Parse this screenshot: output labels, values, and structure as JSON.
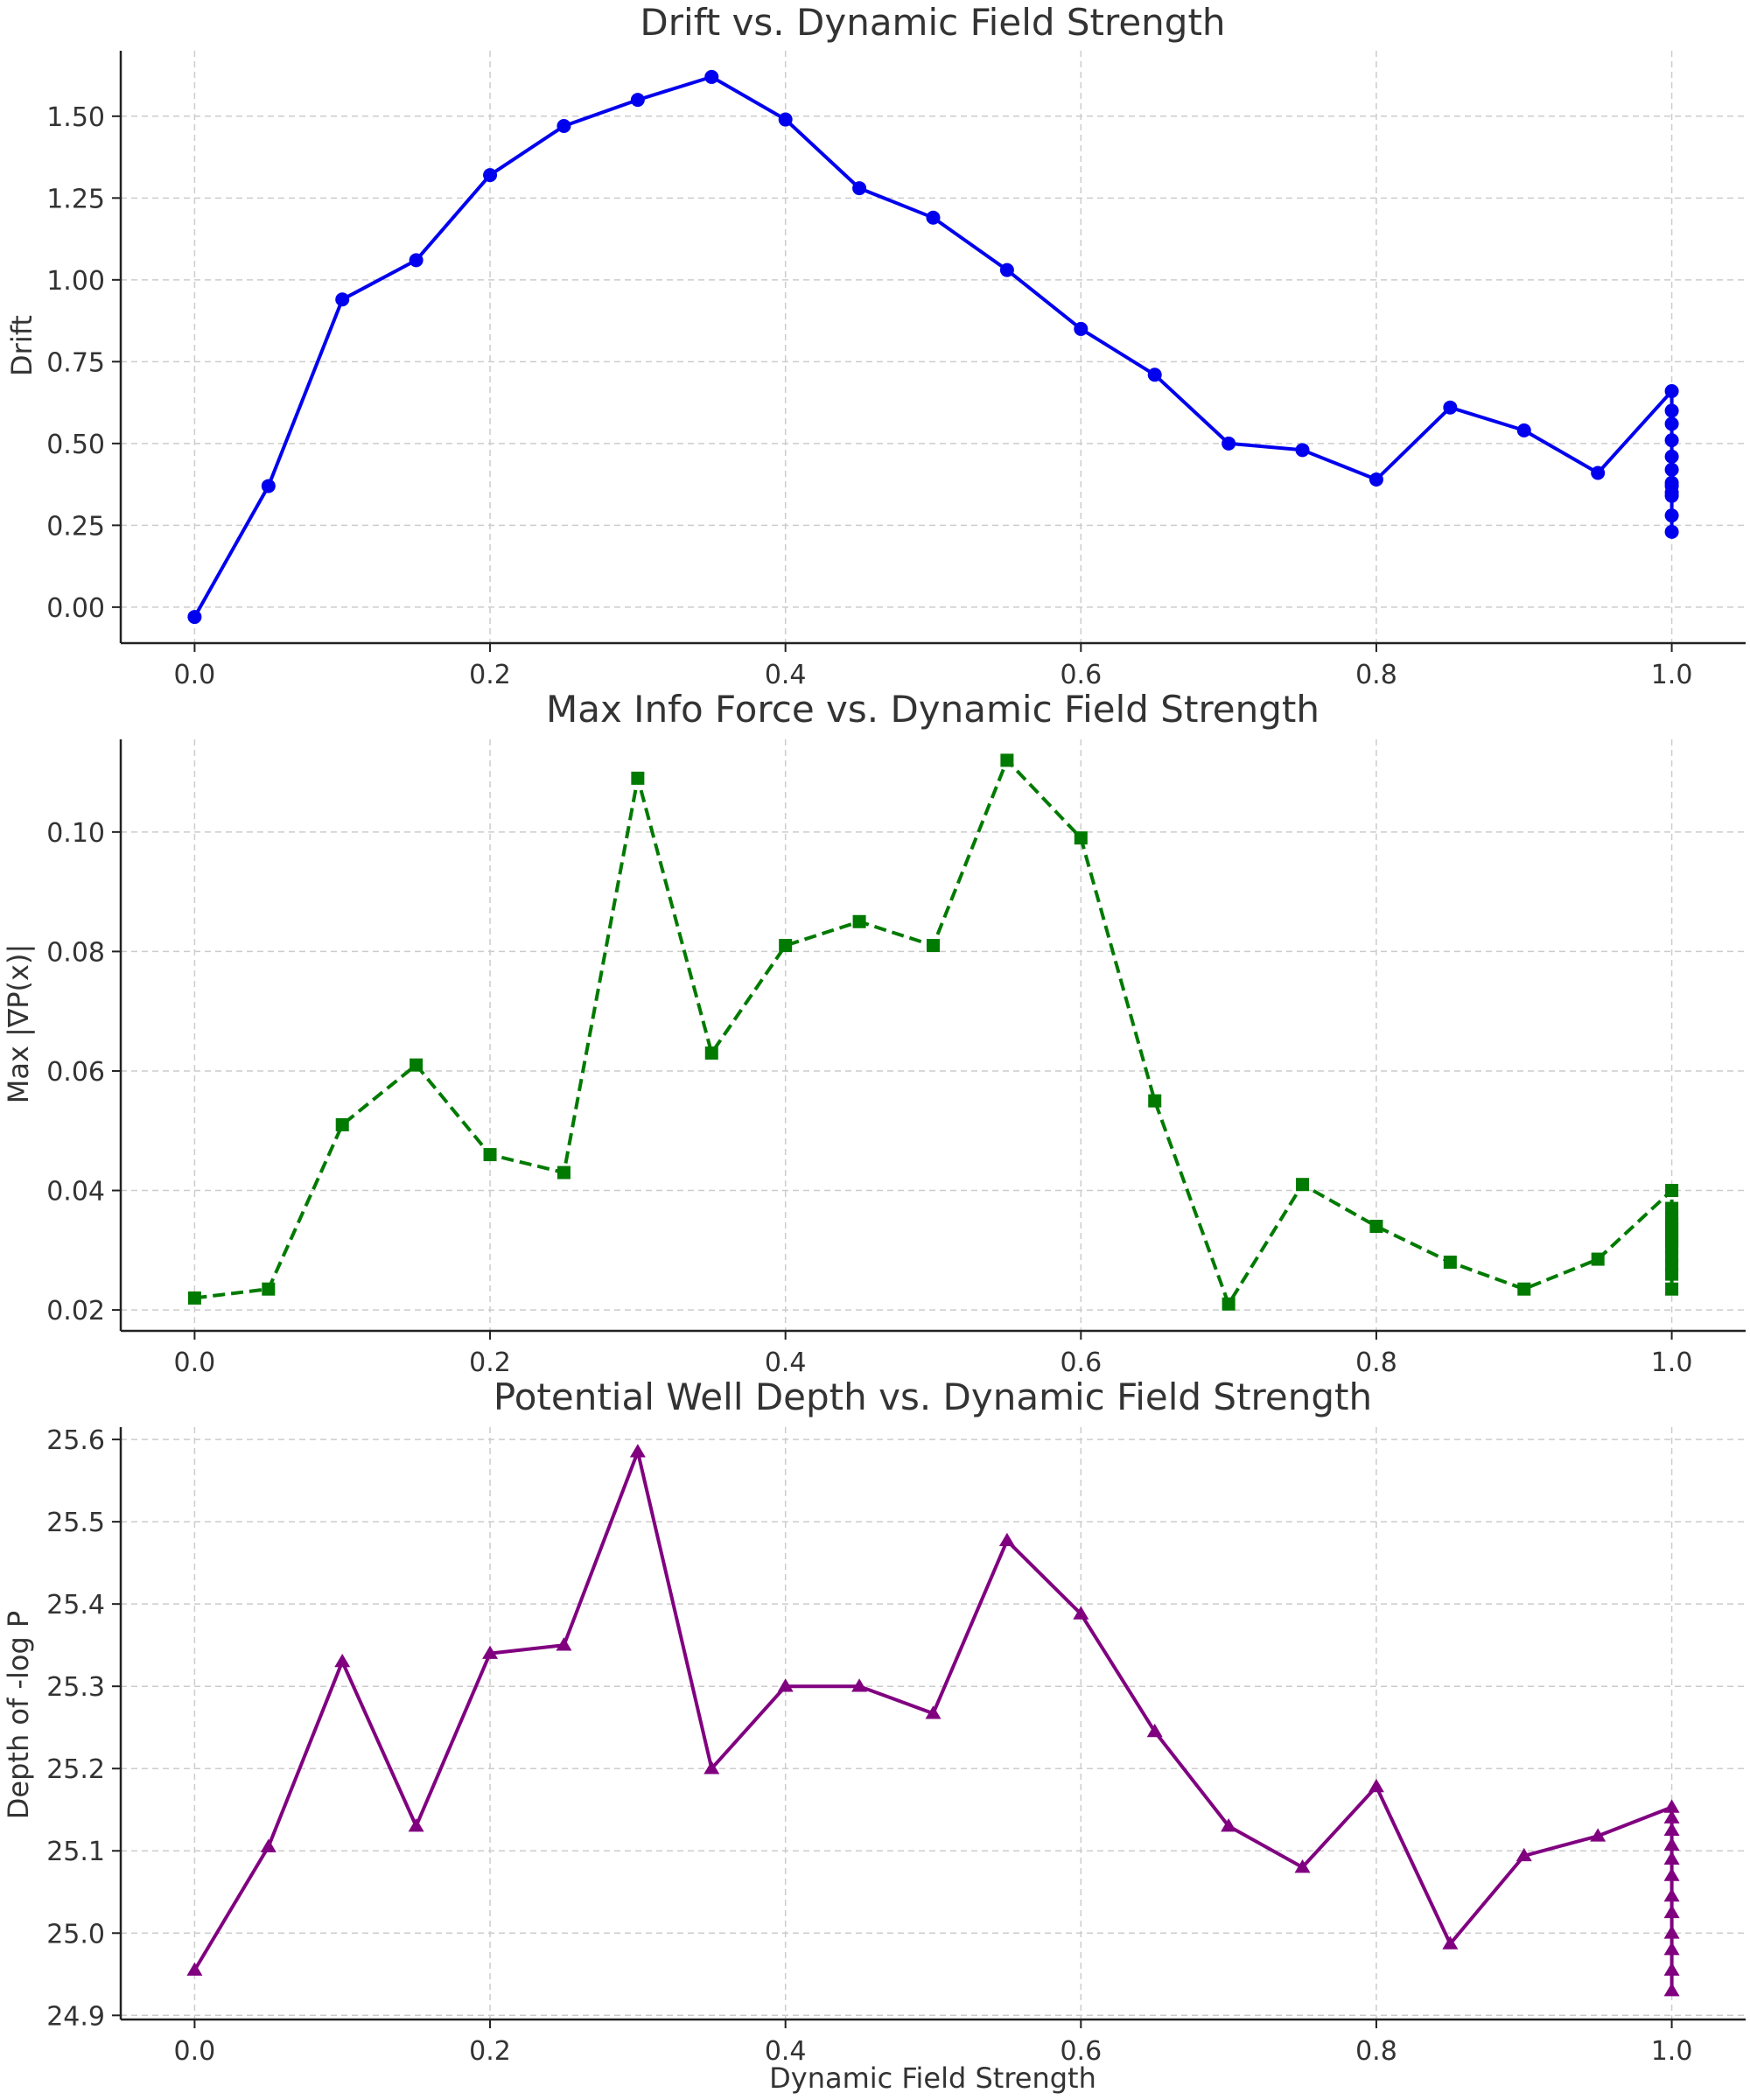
{
  "chart_data": [
    {
      "type": "line",
      "title": "Drift vs. Dynamic Field Strength",
      "xlabel": "",
      "ylabel": "Drift",
      "xlim": [
        -0.05,
        1.05
      ],
      "ylim": [
        -0.11,
        1.7
      ],
      "xticks": [
        "0.0",
        "0.2",
        "0.4",
        "0.6",
        "0.8",
        "1.0"
      ],
      "xtick_values": [
        0,
        0.2,
        0.4,
        0.6,
        0.8,
        1.0
      ],
      "yticks": [
        "0.00",
        "0.25",
        "0.50",
        "0.75",
        "1.00",
        "1.25",
        "1.50"
      ],
      "ytick_values": [
        0,
        0.25,
        0.5,
        0.75,
        1.0,
        1.25,
        1.5
      ],
      "grid": true,
      "series": [
        {
          "color": "#0000ee",
          "line_style": "solid",
          "marker": "circle",
          "x": [
            0.0,
            0.05,
            0.1,
            0.15,
            0.2,
            0.25,
            0.3,
            0.35,
            0.4,
            0.45,
            0.5,
            0.55,
            0.6,
            0.65,
            0.7,
            0.75,
            0.8,
            0.85,
            0.9,
            0.95,
            1.0,
            1.0,
            1.0,
            1.0,
            1.0,
            1.0,
            1.0,
            1.0,
            1.0,
            1.0,
            1.0,
            1.0
          ],
          "y": [
            -0.03,
            0.37,
            0.94,
            1.06,
            1.32,
            1.47,
            1.55,
            1.62,
            1.49,
            1.28,
            1.19,
            1.03,
            0.85,
            0.71,
            0.5,
            0.48,
            0.39,
            0.61,
            0.54,
            0.41,
            0.66,
            0.6,
            0.56,
            0.51,
            0.46,
            0.42,
            0.38,
            0.37,
            0.35,
            0.34,
            0.28,
            0.23
          ]
        }
      ]
    },
    {
      "type": "line",
      "title": "Max Info Force vs. Dynamic Field Strength",
      "xlabel": "",
      "ylabel": "Max |∇P(x)|",
      "xlim": [
        -0.05,
        1.05
      ],
      "ylim": [
        0.0165,
        0.1155
      ],
      "xticks": [
        "0.0",
        "0.2",
        "0.4",
        "0.6",
        "0.8",
        "1.0"
      ],
      "xtick_values": [
        0,
        0.2,
        0.4,
        0.6,
        0.8,
        1.0
      ],
      "yticks": [
        "0.02",
        "0.04",
        "0.06",
        "0.08",
        "0.10"
      ],
      "ytick_values": [
        0.02,
        0.04,
        0.06,
        0.08,
        0.1
      ],
      "grid": true,
      "series": [
        {
          "color": "#007a00",
          "line_style": "dashed",
          "marker": "square",
          "x": [
            0.0,
            0.05,
            0.1,
            0.15,
            0.2,
            0.25,
            0.3,
            0.35,
            0.4,
            0.45,
            0.5,
            0.55,
            0.6,
            0.65,
            0.7,
            0.75,
            0.8,
            0.85,
            0.9,
            0.95,
            1.0,
            1.0,
            1.0,
            1.0,
            1.0,
            1.0,
            1.0,
            1.0,
            1.0,
            1.0,
            1.0,
            1.0
          ],
          "y": [
            0.022,
            0.0235,
            0.051,
            0.061,
            0.046,
            0.043,
            0.109,
            0.063,
            0.081,
            0.085,
            0.081,
            0.112,
            0.099,
            0.055,
            0.021,
            0.041,
            0.034,
            0.028,
            0.0235,
            0.0285,
            0.04,
            0.037,
            0.0355,
            0.0345,
            0.0335,
            0.0325,
            0.0315,
            0.0305,
            0.029,
            0.0275,
            0.026,
            0.0235
          ]
        }
      ]
    },
    {
      "type": "line",
      "title": "Potential Well Depth vs. Dynamic Field Strength",
      "xlabel": "Dynamic Field Strength",
      "ylabel": "Depth of -log P",
      "xlim": [
        -0.05,
        1.05
      ],
      "ylim": [
        24.895,
        25.615
      ],
      "xticks": [
        "0.0",
        "0.2",
        "0.4",
        "0.6",
        "0.8",
        "1.0"
      ],
      "xtick_values": [
        0,
        0.2,
        0.4,
        0.6,
        0.8,
        1.0
      ],
      "yticks": [
        "24.9",
        "25.0",
        "25.1",
        "25.2",
        "25.3",
        "25.4",
        "25.5",
        "25.6"
      ],
      "ytick_values": [
        24.9,
        25.0,
        25.1,
        25.2,
        25.3,
        25.4,
        25.5,
        25.6
      ],
      "grid": true,
      "series": [
        {
          "color": "#800080",
          "line_style": "solid",
          "marker": "triangle",
          "x": [
            0.0,
            0.05,
            0.1,
            0.15,
            0.2,
            0.25,
            0.3,
            0.35,
            0.4,
            0.45,
            0.5,
            0.55,
            0.6,
            0.65,
            0.7,
            0.75,
            0.8,
            0.85,
            0.9,
            0.95,
            1.0,
            1.0,
            1.0,
            1.0,
            1.0,
            1.0,
            1.0,
            1.0,
            1.0,
            1.0,
            1.0,
            1.0
          ],
          "y": [
            24.955,
            25.105,
            25.33,
            25.13,
            25.34,
            25.35,
            25.585,
            25.2,
            25.3,
            25.3,
            25.267,
            25.477,
            25.388,
            25.245,
            25.13,
            25.08,
            25.178,
            24.987,
            25.094,
            25.118,
            25.153,
            25.14,
            25.125,
            25.107,
            25.09,
            25.07,
            25.045,
            25.025,
            25.0,
            24.98,
            24.955,
            24.93
          ]
        }
      ]
    }
  ]
}
